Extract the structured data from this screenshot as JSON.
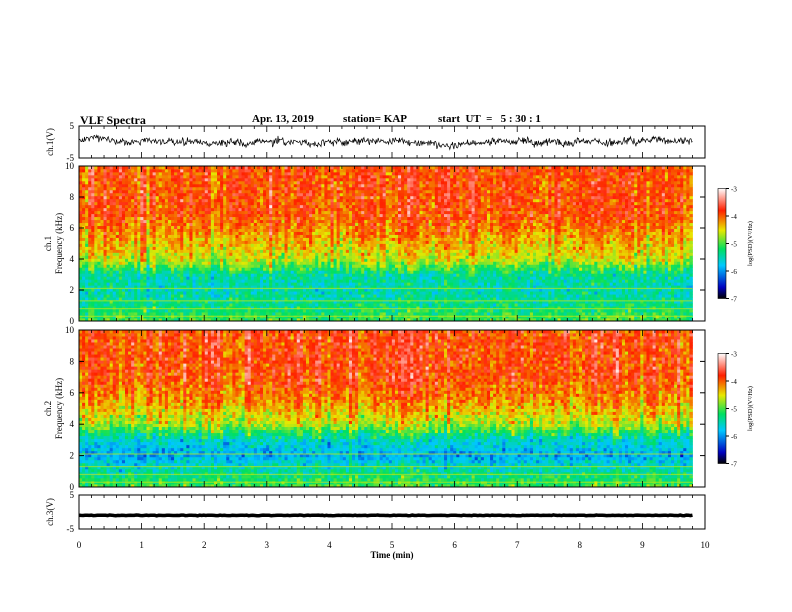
{
  "header": {
    "title": "VLF Spectra",
    "date": "Apr. 13, 2019",
    "station": "station= KAP",
    "start": "start  UT  =   5 : 30 : 1"
  },
  "chart_data": [
    {
      "type": "line",
      "panel": "ch1-waveform",
      "ylabel": "ch.1(V)",
      "ylim": [
        -5,
        5
      ],
      "yticks": [
        5,
        -5
      ],
      "xlim": [
        0,
        10
      ],
      "x_unit": "min",
      "trace": {
        "color": "#000000",
        "mean": 0.0,
        "amplitude": 1.8,
        "x_end": 9.8
      },
      "grid": false
    },
    {
      "type": "heatmap",
      "panel": "ch1-spectrogram",
      "ylabel": "ch.1\nFrequency (kHz)",
      "ylim": [
        0,
        10
      ],
      "yticks": [
        0,
        2,
        4,
        6,
        8,
        10
      ],
      "xlim": [
        0,
        10
      ],
      "x_end": 9.8,
      "colorbar": {
        "label": "log(PSD)(V²/Hz)",
        "range": [
          -7,
          -3
        ],
        "ticks": [
          -3,
          -4,
          -5,
          -6,
          -7
        ]
      },
      "value_profile": [
        {
          "freq_khz": 0.0,
          "log_psd": -5.0
        },
        {
          "freq_khz": 1.0,
          "log_psd": -5.3
        },
        {
          "freq_khz": 2.0,
          "log_psd": -5.5
        },
        {
          "freq_khz": 3.0,
          "log_psd": -5.4
        },
        {
          "freq_khz": 4.0,
          "log_psd": -4.6
        },
        {
          "freq_khz": 5.5,
          "log_psd": -4.2
        },
        {
          "freq_khz": 7.0,
          "log_psd": -3.9
        },
        {
          "freq_khz": 10.0,
          "log_psd": -3.9
        }
      ]
    },
    {
      "type": "heatmap",
      "panel": "ch2-spectrogram",
      "ylabel": "ch.2\nFrequency (kHz)",
      "ylim": [
        0,
        10
      ],
      "yticks": [
        0,
        2,
        4,
        6,
        8,
        10
      ],
      "xlim": [
        0,
        10
      ],
      "x_end": 9.8,
      "colorbar": {
        "label": "log(PSD)(V²/Hz)",
        "range": [
          -7,
          -3
        ],
        "ticks": [
          -3,
          -4,
          -5,
          -6,
          -7
        ]
      },
      "value_profile": [
        {
          "freq_khz": 0.0,
          "log_psd": -5.0
        },
        {
          "freq_khz": 1.0,
          "log_psd": -5.4
        },
        {
          "freq_khz": 2.0,
          "log_psd": -5.9
        },
        {
          "freq_khz": 3.0,
          "log_psd": -5.6
        },
        {
          "freq_khz": 4.0,
          "log_psd": -4.7
        },
        {
          "freq_khz": 5.5,
          "log_psd": -4.2
        },
        {
          "freq_khz": 7.0,
          "log_psd": -3.9
        },
        {
          "freq_khz": 10.0,
          "log_psd": -3.9
        }
      ]
    },
    {
      "type": "line",
      "panel": "ch3-waveform",
      "ylabel": "ch.3(V)",
      "ylim": [
        -5,
        5
      ],
      "yticks": [
        5,
        -5
      ],
      "xlim": [
        0,
        10
      ],
      "trace": {
        "color": "#000000",
        "mean": -1.0,
        "amplitude": 0.1,
        "x_end": 9.8
      },
      "xlabel": "Time (min)",
      "xticks": [
        0,
        1,
        2,
        3,
        4,
        5,
        6,
        7,
        8,
        9,
        10
      ],
      "grid": false
    }
  ]
}
